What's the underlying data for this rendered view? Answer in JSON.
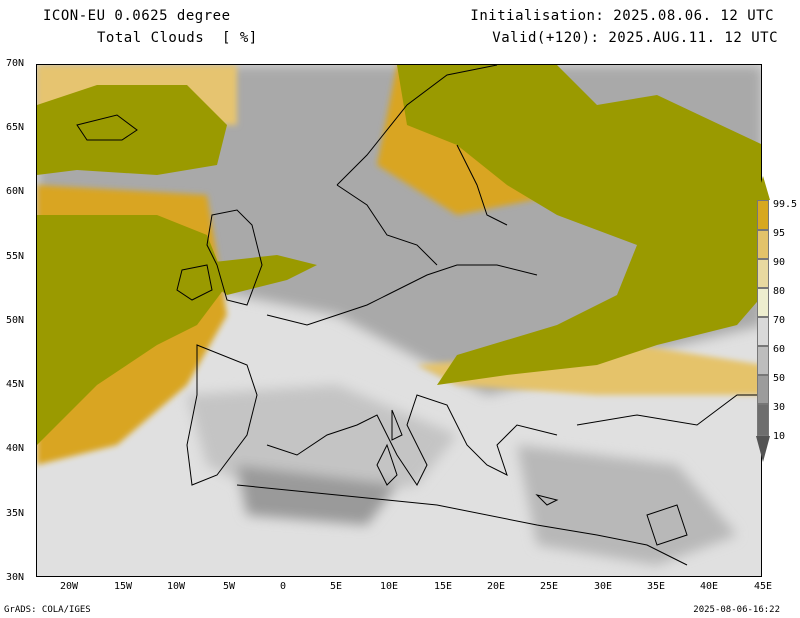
{
  "header": {
    "model_line": "ICON-EU 0.0625 degree",
    "field_line": "Total Clouds  [ %]",
    "init_line": "Initialisation: 2025.08.06. 12 UTC",
    "valid_line": "Valid(+120): 2025.AUG.11. 12 UTC"
  },
  "map": {
    "lat_labels": [
      "70N",
      "65N",
      "60N",
      "55N",
      "50N",
      "45N",
      "40N",
      "35N",
      "30N"
    ],
    "lon_labels": [
      "20W",
      "15W",
      "10W",
      "5W",
      "0",
      "5E",
      "10E",
      "15E",
      "20E",
      "25E",
      "30E",
      "35E",
      "40E",
      "45E"
    ]
  },
  "legend": {
    "labels": [
      "99.5",
      "95",
      "90",
      "80",
      "70",
      "60",
      "50",
      "30",
      "10"
    ],
    "colors": [
      "#9a9a00",
      "#d7a81f",
      "#e3c36a",
      "#e8d9a0",
      "#eeeecf",
      "#d9d9d9",
      "#bdbdbd",
      "#9c9c9c",
      "#6e6e6e",
      "#545454"
    ]
  },
  "footer": {
    "left": "GrADS: COLA/IGES",
    "right": "2025-08-06-16:22"
  }
}
